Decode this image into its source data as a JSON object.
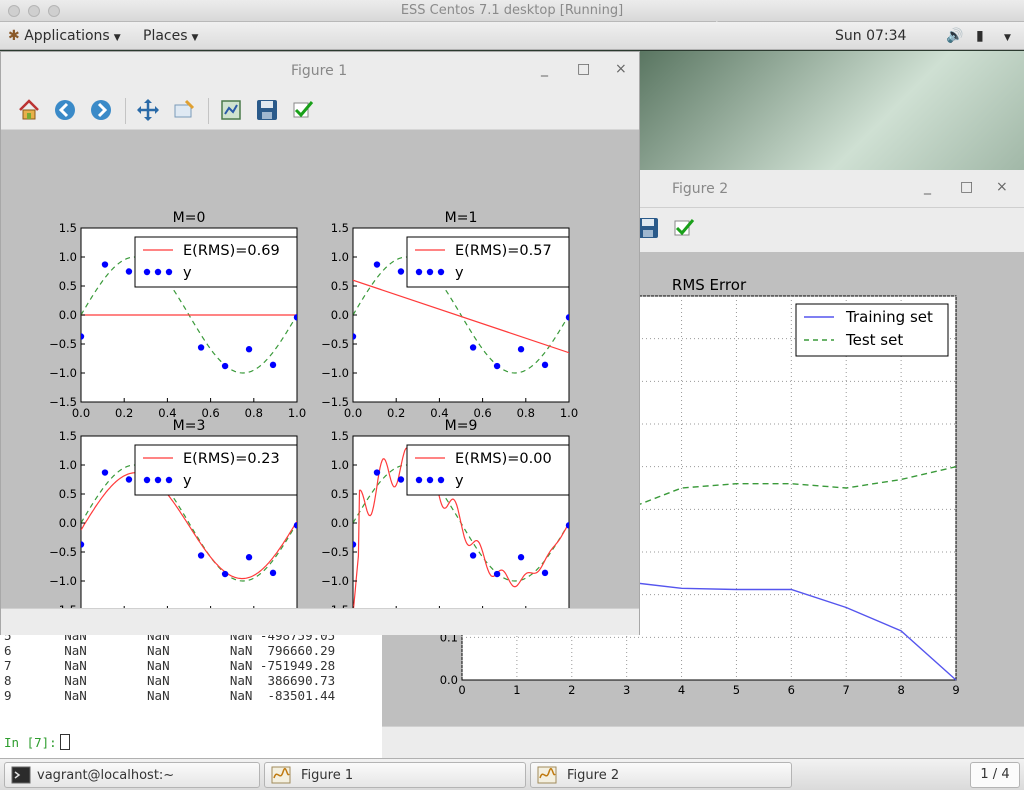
{
  "host": {
    "title": "ESS Centos 7.1 desktop [Running]"
  },
  "panel": {
    "applications": "Applications",
    "places": "Places",
    "clock": "Sun 07:34"
  },
  "figure1": {
    "title": "Figure 1",
    "minimize": "_",
    "maximize": "□",
    "close": "×",
    "toolbar": [
      "home-icon",
      "back-icon",
      "forward-icon",
      "pan-icon",
      "zoom-icon",
      "subplots-icon",
      "save-icon",
      "edit-icon"
    ],
    "subplots": [
      {
        "title": "M=0",
        "rms_label": "E(RMS)=0.69"
      },
      {
        "title": "M=1",
        "rms_label": "E(RMS)=0.57"
      },
      {
        "title": "M=3",
        "rms_label": "E(RMS)=0.23"
      },
      {
        "title": "M=9",
        "rms_label": "E(RMS)=0.00"
      }
    ],
    "legend_y": "y"
  },
  "figure2": {
    "title": "Figure 2",
    "minimize": "_",
    "maximize": "□",
    "close": "×",
    "plot_title": "RMS Error",
    "legend_train": "Training set",
    "legend_test": "Test set"
  },
  "terminal": {
    "rows": [
      {
        "idx": "5",
        "a": "NaN",
        "b": "NaN",
        "c": "NaN",
        "d": "-498759.05"
      },
      {
        "idx": "6",
        "a": "NaN",
        "b": "NaN",
        "c": "NaN",
        "d": " 796660.29"
      },
      {
        "idx": "7",
        "a": "NaN",
        "b": "NaN",
        "c": "NaN",
        "d": "-751949.28"
      },
      {
        "idx": "8",
        "a": "NaN",
        "b": "NaN",
        "c": "NaN",
        "d": " 386690.73"
      },
      {
        "idx": "9",
        "a": "NaN",
        "b": "NaN",
        "c": "NaN",
        "d": " -83501.44"
      }
    ],
    "prompt": "In [7]:"
  },
  "taskbar": {
    "terminal_label": "vagrant@localhost:~",
    "fig1_label": "Figure 1",
    "fig2_label": "Figure 2",
    "pager": "1 / 4"
  },
  "chart_data": [
    {
      "type": "scatter",
      "title": "M=0",
      "x": [
        0.0,
        0.111,
        0.222,
        0.333,
        0.444,
        0.556,
        0.667,
        0.778,
        0.889,
        1.0
      ],
      "y": [
        -0.37,
        0.87,
        0.75,
        0.74,
        null,
        -0.56,
        -0.88,
        -0.59,
        -0.86,
        -0.04
      ],
      "fit_values": [
        0,
        0
      ],
      "series": [
        {
          "name": "E(RMS)=0.69"
        },
        {
          "name": "y"
        }
      ],
      "xlim": [
        0,
        1
      ],
      "ylim": [
        -1.5,
        1.5
      ],
      "xticks": [
        "0.0",
        "0.2",
        "0.4",
        "0.6",
        "0.8",
        "1.0"
      ],
      "yticks": [
        "1.5",
        "1.0",
        "0.5",
        "0.0",
        "−0.5",
        "−1.0",
        "−1.5"
      ],
      "colors": {
        "fit": "#ff3b3b",
        "data": "#0000ff",
        "truth": "#3a9a3a"
      }
    },
    {
      "type": "scatter",
      "title": "M=1",
      "x": [
        0.0,
        0.111,
        0.222,
        0.333,
        0.444,
        0.556,
        0.667,
        0.778,
        0.889,
        1.0
      ],
      "y": [
        -0.37,
        0.87,
        0.75,
        0.74,
        null,
        -0.56,
        -0.88,
        -0.59,
        -0.86,
        -0.04
      ],
      "fit_values": [
        0.6,
        -0.65
      ],
      "series": [
        {
          "name": "E(RMS)=0.57"
        },
        {
          "name": "y"
        }
      ],
      "xlim": [
        0,
        1
      ],
      "ylim": [
        -1.5,
        1.5
      ]
    },
    {
      "type": "scatter",
      "title": "M=3",
      "x": [
        0.0,
        0.111,
        0.222,
        0.333,
        0.444,
        0.556,
        0.667,
        0.778,
        0.889,
        1.0
      ],
      "y": [
        -0.37,
        0.87,
        0.75,
        0.74,
        null,
        -0.56,
        -0.88,
        -0.59,
        -0.86,
        -0.04
      ],
      "series": [
        {
          "name": "E(RMS)=0.23"
        },
        {
          "name": "y"
        }
      ],
      "xlim": [
        0,
        1
      ],
      "ylim": [
        -1.5,
        1.5
      ]
    },
    {
      "type": "scatter",
      "title": "M=9",
      "x": [
        0.0,
        0.111,
        0.222,
        0.333,
        0.444,
        0.556,
        0.667,
        0.778,
        0.889,
        1.0
      ],
      "y": [
        -0.37,
        0.87,
        0.75,
        0.74,
        null,
        -0.56,
        -0.88,
        -0.59,
        -0.86,
        -0.04
      ],
      "series": [
        {
          "name": "E(RMS)=0.00"
        },
        {
          "name": "y"
        }
      ],
      "xlim": [
        0,
        1
      ],
      "ylim": [
        -1.5,
        1.5
      ]
    },
    {
      "type": "line",
      "title": "RMS Error",
      "x": [
        0,
        1,
        2,
        3,
        4,
        5,
        6,
        7,
        8,
        9
      ],
      "series": [
        {
          "name": "Training set",
          "values": [
            null,
            null,
            0.23,
            0.23,
            0.215,
            0.212,
            0.212,
            0.17,
            0.115,
            0.0
          ],
          "color": "#5555ee"
        },
        {
          "name": "Test set",
          "values": [
            null,
            null,
            null,
            0.4,
            0.45,
            0.46,
            0.46,
            0.45,
            0.47,
            0.5
          ],
          "color": "#3a9a3a"
        }
      ],
      "xticks": [
        "0",
        "1",
        "2",
        "3",
        "4",
        "5",
        "6",
        "7",
        "8",
        "9"
      ],
      "yticks": [
        "0.0",
        "0.1"
      ],
      "xlim": [
        0,
        9
      ],
      "ylim": [
        0,
        0.9
      ],
      "grid": true,
      "legend": "top-right"
    }
  ]
}
